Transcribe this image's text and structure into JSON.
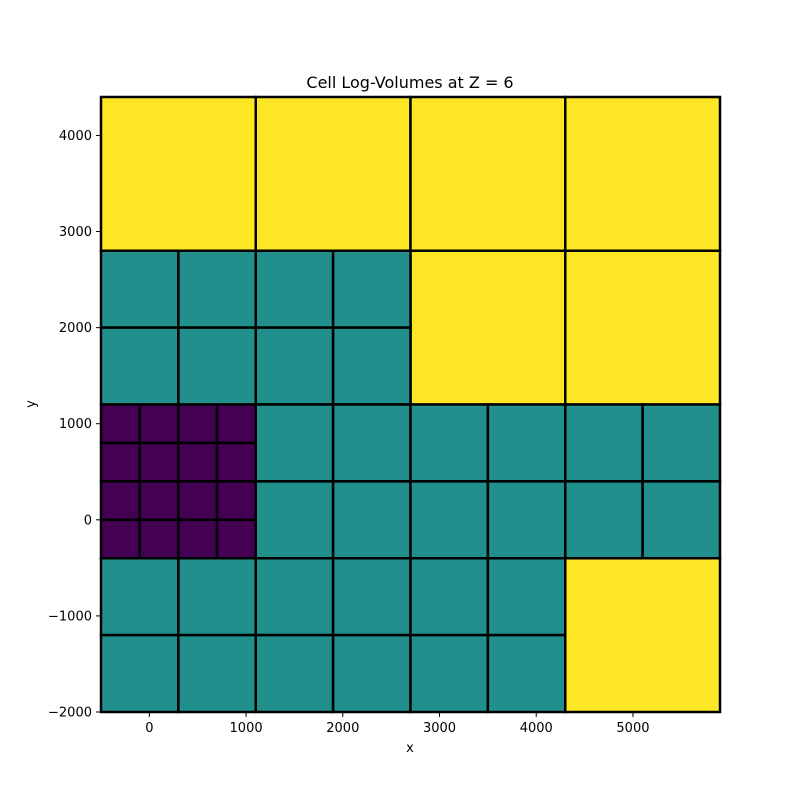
{
  "chart_data": {
    "type": "heatmap",
    "title": "Cell Log-Volumes at Z = 6",
    "xlabel": "x",
    "ylabel": "y",
    "xlim": [
      -500,
      5900
    ],
    "ylim": [
      -2000,
      4400
    ],
    "x_ticks": [
      0,
      1000,
      2000,
      3000,
      4000,
      5000
    ],
    "y_ticks": [
      -2000,
      -1000,
      0,
      1000,
      2000,
      3000,
      4000
    ],
    "x_tick_labels": [
      "0",
      "1000",
      "2000",
      "3000",
      "4000",
      "5000"
    ],
    "y_tick_labels": [
      "−2000",
      "−1000",
      "0",
      "1000",
      "2000",
      "3000",
      "4000"
    ],
    "grid": false,
    "colormap": "viridis",
    "level_colors": {
      "low": "#440154",
      "mid": "#21908d",
      "high": "#fde725"
    },
    "cell_edge_color": "#000000",
    "cells": [
      {
        "x0": -500,
        "x1": 1100,
        "y0": 2800,
        "y1": 4400,
        "level": "high"
      },
      {
        "x0": 1100,
        "x1": 2700,
        "y0": 2800,
        "y1": 4400,
        "level": "high"
      },
      {
        "x0": 2700,
        "x1": 4300,
        "y0": 2800,
        "y1": 4400,
        "level": "high"
      },
      {
        "x0": 4300,
        "x1": 5900,
        "y0": 2800,
        "y1": 4400,
        "level": "high"
      },
      {
        "x0": 2700,
        "x1": 4300,
        "y0": 1200,
        "y1": 2800,
        "level": "high"
      },
      {
        "x0": 4300,
        "x1": 5900,
        "y0": 1200,
        "y1": 2800,
        "level": "high"
      },
      {
        "x0": 4300,
        "x1": 5900,
        "y0": -2000,
        "y1": -400,
        "level": "high"
      },
      {
        "x0": -500,
        "x1": 300,
        "y0": 2000,
        "y1": 2800,
        "level": "mid"
      },
      {
        "x0": 300,
        "x1": 1100,
        "y0": 2000,
        "y1": 2800,
        "level": "mid"
      },
      {
        "x0": 1100,
        "x1": 1900,
        "y0": 2000,
        "y1": 2800,
        "level": "mid"
      },
      {
        "x0": 1900,
        "x1": 2700,
        "y0": 2000,
        "y1": 2800,
        "level": "mid"
      },
      {
        "x0": -500,
        "x1": 300,
        "y0": 1200,
        "y1": 2000,
        "level": "mid"
      },
      {
        "x0": 300,
        "x1": 1100,
        "y0": 1200,
        "y1": 2000,
        "level": "mid"
      },
      {
        "x0": 1100,
        "x1": 1900,
        "y0": 1200,
        "y1": 2000,
        "level": "mid"
      },
      {
        "x0": 1900,
        "x1": 2700,
        "y0": 1200,
        "y1": 2000,
        "level": "mid"
      },
      {
        "x0": 1100,
        "x1": 1900,
        "y0": 400,
        "y1": 1200,
        "level": "mid"
      },
      {
        "x0": 1900,
        "x1": 2700,
        "y0": 400,
        "y1": 1200,
        "level": "mid"
      },
      {
        "x0": 2700,
        "x1": 3500,
        "y0": 400,
        "y1": 1200,
        "level": "mid"
      },
      {
        "x0": 3500,
        "x1": 4300,
        "y0": 400,
        "y1": 1200,
        "level": "mid"
      },
      {
        "x0": 4300,
        "x1": 5100,
        "y0": 400,
        "y1": 1200,
        "level": "mid"
      },
      {
        "x0": 5100,
        "x1": 5900,
        "y0": 400,
        "y1": 1200,
        "level": "mid"
      },
      {
        "x0": 1100,
        "x1": 1900,
        "y0": -400,
        "y1": 400,
        "level": "mid"
      },
      {
        "x0": 1900,
        "x1": 2700,
        "y0": -400,
        "y1": 400,
        "level": "mid"
      },
      {
        "x0": 2700,
        "x1": 3500,
        "y0": -400,
        "y1": 400,
        "level": "mid"
      },
      {
        "x0": 3500,
        "x1": 4300,
        "y0": -400,
        "y1": 400,
        "level": "mid"
      },
      {
        "x0": 4300,
        "x1": 5100,
        "y0": -400,
        "y1": 400,
        "level": "mid"
      },
      {
        "x0": 5100,
        "x1": 5900,
        "y0": -400,
        "y1": 400,
        "level": "mid"
      },
      {
        "x0": -500,
        "x1": 300,
        "y0": -1200,
        "y1": -400,
        "level": "mid"
      },
      {
        "x0": 300,
        "x1": 1100,
        "y0": -1200,
        "y1": -400,
        "level": "mid"
      },
      {
        "x0": 1100,
        "x1": 1900,
        "y0": -1200,
        "y1": -400,
        "level": "mid"
      },
      {
        "x0": 1900,
        "x1": 2700,
        "y0": -1200,
        "y1": -400,
        "level": "mid"
      },
      {
        "x0": 2700,
        "x1": 3500,
        "y0": -1200,
        "y1": -400,
        "level": "mid"
      },
      {
        "x0": 3500,
        "x1": 4300,
        "y0": -1200,
        "y1": -400,
        "level": "mid"
      },
      {
        "x0": -500,
        "x1": 300,
        "y0": -2000,
        "y1": -1200,
        "level": "mid"
      },
      {
        "x0": 300,
        "x1": 1100,
        "y0": -2000,
        "y1": -1200,
        "level": "mid"
      },
      {
        "x0": 1100,
        "x1": 1900,
        "y0": -2000,
        "y1": -1200,
        "level": "mid"
      },
      {
        "x0": 1900,
        "x1": 2700,
        "y0": -2000,
        "y1": -1200,
        "level": "mid"
      },
      {
        "x0": 2700,
        "x1": 3500,
        "y0": -2000,
        "y1": -1200,
        "level": "mid"
      },
      {
        "x0": 3500,
        "x1": 4300,
        "y0": -2000,
        "y1": -1200,
        "level": "mid"
      },
      {
        "x0": -500,
        "x1": -100,
        "y0": 800,
        "y1": 1200,
        "level": "low"
      },
      {
        "x0": -100,
        "x1": 300,
        "y0": 800,
        "y1": 1200,
        "level": "low"
      },
      {
        "x0": 300,
        "x1": 700,
        "y0": 800,
        "y1": 1200,
        "level": "low"
      },
      {
        "x0": 700,
        "x1": 1100,
        "y0": 800,
        "y1": 1200,
        "level": "low"
      },
      {
        "x0": -500,
        "x1": -100,
        "y0": 400,
        "y1": 800,
        "level": "low"
      },
      {
        "x0": -100,
        "x1": 300,
        "y0": 400,
        "y1": 800,
        "level": "low"
      },
      {
        "x0": 300,
        "x1": 700,
        "y0": 400,
        "y1": 800,
        "level": "low"
      },
      {
        "x0": 700,
        "x1": 1100,
        "y0": 400,
        "y1": 800,
        "level": "low"
      },
      {
        "x0": -500,
        "x1": -100,
        "y0": 0,
        "y1": 400,
        "level": "low"
      },
      {
        "x0": -100,
        "x1": 300,
        "y0": 0,
        "y1": 400,
        "level": "low"
      },
      {
        "x0": 300,
        "x1": 700,
        "y0": 0,
        "y1": 400,
        "level": "low"
      },
      {
        "x0": 700,
        "x1": 1100,
        "y0": 0,
        "y1": 400,
        "level": "low"
      },
      {
        "x0": -500,
        "x1": -100,
        "y0": -400,
        "y1": 0,
        "level": "low"
      },
      {
        "x0": -100,
        "x1": 300,
        "y0": -400,
        "y1": 0,
        "level": "low"
      },
      {
        "x0": 300,
        "x1": 700,
        "y0": -400,
        "y1": 0,
        "level": "low"
      },
      {
        "x0": 700,
        "x1": 1100,
        "y0": -400,
        "y1": 0,
        "level": "low"
      }
    ]
  }
}
